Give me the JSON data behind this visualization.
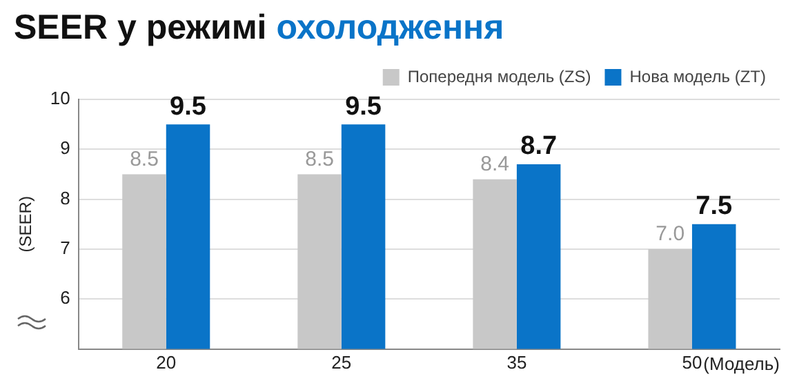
{
  "chart_data": {
    "type": "bar",
    "title": "SEER у режимі охолодження",
    "xlabel": "(Модель)",
    "ylabel": "(SEER)",
    "categories": [
      "20",
      "25",
      "35",
      "50"
    ],
    "series": [
      {
        "name": "Попередня модель (ZS)",
        "color": "#c8c8c8",
        "values": [
          8.5,
          8.5,
          8.4,
          7.0
        ],
        "value_labels": [
          "8.5",
          "8.5",
          "8.4",
          "7.0"
        ]
      },
      {
        "name": "Нова модель (ZT)",
        "color": "#0a74c8",
        "values": [
          9.5,
          9.5,
          8.7,
          7.5
        ],
        "value_labels": [
          "9.5",
          "9.5",
          "8.7",
          "7.5"
        ]
      }
    ],
    "ylim": [
      5,
      10
    ],
    "yticks": [
      6,
      7,
      8,
      9,
      10
    ],
    "grid": "y",
    "legend": "top right"
  }
}
